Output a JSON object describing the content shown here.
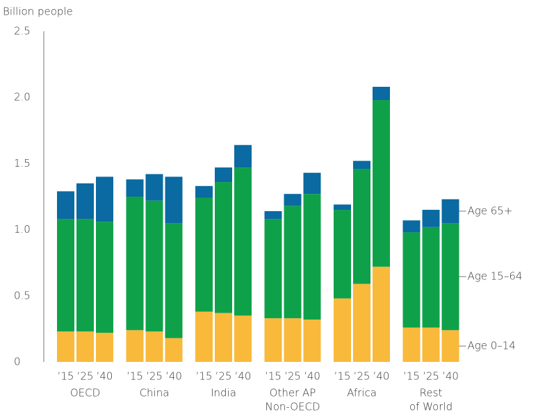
{
  "chart_data": {
    "type": "grouped-stacked-bar",
    "y_label": "Billion people",
    "categories": [
      [
        "OECD"
      ],
      [
        "China"
      ],
      [
        "India"
      ],
      [
        "Other AP",
        "Non-OECD"
      ],
      [
        "Africa"
      ],
      [
        "Rest",
        "of World"
      ]
    ],
    "sub_categories": [
      "’15",
      "’25",
      "’40"
    ],
    "ylim": [
      0,
      2.5
    ],
    "yticks": [
      0,
      0.5,
      {
        "value": 1,
        "label": "1.0"
      },
      1.5,
      {
        "value": 2,
        "label": "2.0"
      },
      2.5
    ],
    "series": [
      {
        "name": "Age 0–14",
        "color": "#f9b93b",
        "values": [
          [
            0.23,
            0.23,
            0.22
          ],
          [
            0.24,
            0.23,
            0.18
          ],
          [
            0.38,
            0.37,
            0.35
          ],
          [
            0.33,
            0.33,
            0.32
          ],
          [
            0.48,
            0.59,
            0.72
          ],
          [
            0.26,
            0.26,
            0.24
          ]
        ]
      },
      {
        "name": "Age 15–64",
        "color": "#0fa14a",
        "values": [
          [
            0.85,
            0.85,
            0.84
          ],
          [
            1.01,
            0.99,
            0.87
          ],
          [
            0.86,
            0.99,
            1.12
          ],
          [
            0.75,
            0.85,
            0.95
          ],
          [
            0.67,
            0.87,
            1.26
          ],
          [
            0.72,
            0.76,
            0.81
          ]
        ]
      },
      {
        "name": "Age 65+",
        "color": "#0a6aa1",
        "values": [
          [
            0.21,
            0.27,
            0.34
          ],
          [
            0.13,
            0.2,
            0.35
          ],
          [
            0.09,
            0.11,
            0.17
          ],
          [
            0.06,
            0.09,
            0.16
          ],
          [
            0.04,
            0.06,
            0.1
          ],
          [
            0.09,
            0.13,
            0.18
          ]
        ]
      }
    ]
  }
}
